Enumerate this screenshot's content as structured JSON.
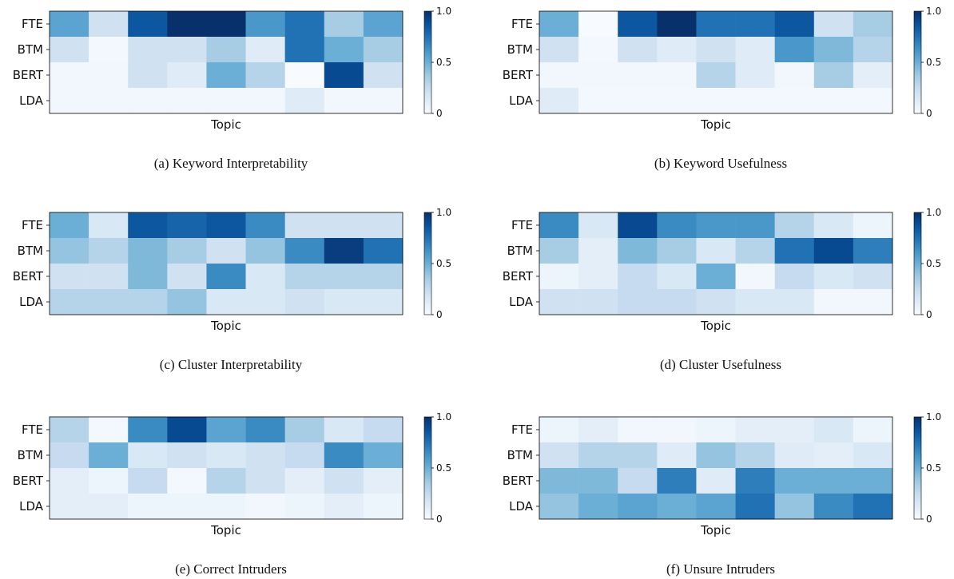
{
  "colormap": "Blues",
  "colorbar_ticks": [
    "0",
    "0.5",
    "1.0"
  ],
  "chart_data": [
    {
      "type": "heatmap",
      "panel": "a",
      "title": "(a)  Keyword Interpretability",
      "xlabel": "Topic",
      "rows": [
        "FTE",
        "BTM",
        "BERT",
        "LDA"
      ],
      "columns": 9,
      "values": [
        [
          0.55,
          0.2,
          0.85,
          1.0,
          1.0,
          0.6,
          0.75,
          0.35,
          0.55
        ],
        [
          0.2,
          0.02,
          0.2,
          0.2,
          0.35,
          0.12,
          0.75,
          0.5,
          0.35
        ],
        [
          0.03,
          0.03,
          0.2,
          0.12,
          0.5,
          0.3,
          0.0,
          0.9,
          0.2
        ],
        [
          0.03,
          0.03,
          0.03,
          0.03,
          0.03,
          0.03,
          0.12,
          0.03,
          0.03
        ]
      ],
      "vmin": 0,
      "vmax": 1.0
    },
    {
      "type": "heatmap",
      "panel": "b",
      "title": "(b)  Keyword Usefulness",
      "xlabel": "Topic",
      "rows": [
        "FTE",
        "BTM",
        "BERT",
        "LDA"
      ],
      "columns": 9,
      "values": [
        [
          0.5,
          0.0,
          0.85,
          1.0,
          0.75,
          0.75,
          0.85,
          0.2,
          0.35
        ],
        [
          0.2,
          0.02,
          0.2,
          0.12,
          0.2,
          0.12,
          0.6,
          0.45,
          0.3
        ],
        [
          0.03,
          0.03,
          0.03,
          0.03,
          0.3,
          0.12,
          0.03,
          0.35,
          0.1
        ],
        [
          0.12,
          0.02,
          0.02,
          0.02,
          0.02,
          0.02,
          0.02,
          0.02,
          0.02
        ]
      ],
      "vmin": 0,
      "vmax": 1.0
    },
    {
      "type": "heatmap",
      "panel": "c",
      "title": "(c)  Cluster Interpretability",
      "xlabel": "Topic",
      "rows": [
        "FTE",
        "BTM",
        "BERT",
        "LDA"
      ],
      "columns": 9,
      "values": [
        [
          0.5,
          0.15,
          0.85,
          0.8,
          0.85,
          0.65,
          0.2,
          0.2,
          0.2
        ],
        [
          0.4,
          0.3,
          0.45,
          0.35,
          0.2,
          0.4,
          0.65,
          0.95,
          0.75
        ],
        [
          0.2,
          0.2,
          0.45,
          0.2,
          0.65,
          0.15,
          0.3,
          0.3,
          0.3
        ],
        [
          0.3,
          0.3,
          0.3,
          0.4,
          0.15,
          0.15,
          0.2,
          0.15,
          0.15
        ]
      ],
      "vmin": 0,
      "vmax": 1.0
    },
    {
      "type": "heatmap",
      "panel": "d",
      "title": "(d)  Cluster Usefulness",
      "xlabel": "Topic",
      "rows": [
        "FTE",
        "BTM",
        "BERT",
        "LDA"
      ],
      "columns": 9,
      "values": [
        [
          0.65,
          0.15,
          0.9,
          0.65,
          0.6,
          0.6,
          0.3,
          0.15,
          0.05
        ],
        [
          0.35,
          0.1,
          0.45,
          0.35,
          0.15,
          0.3,
          0.75,
          0.9,
          0.7
        ],
        [
          0.05,
          0.1,
          0.25,
          0.15,
          0.5,
          0.03,
          0.25,
          0.15,
          0.2
        ],
        [
          0.2,
          0.2,
          0.25,
          0.25,
          0.2,
          0.15,
          0.15,
          0.03,
          0.03
        ]
      ],
      "vmin": 0,
      "vmax": 1.0
    },
    {
      "type": "heatmap",
      "panel": "e",
      "title": "(e)  Correct Intruders",
      "xlabel": "Topic",
      "rows": [
        "FTE",
        "BTM",
        "BERT",
        "LDA"
      ],
      "columns": 9,
      "values": [
        [
          0.3,
          0.02,
          0.65,
          0.9,
          0.55,
          0.65,
          0.35,
          0.15,
          0.25
        ],
        [
          0.25,
          0.5,
          0.15,
          0.2,
          0.15,
          0.2,
          0.25,
          0.65,
          0.5
        ],
        [
          0.1,
          0.05,
          0.25,
          0.02,
          0.3,
          0.2,
          0.1,
          0.2,
          0.1
        ],
        [
          0.1,
          0.1,
          0.05,
          0.05,
          0.05,
          0.03,
          0.05,
          0.1,
          0.05
        ]
      ],
      "vmin": 0,
      "vmax": 1.0
    },
    {
      "type": "heatmap",
      "panel": "f",
      "title": "(f)  Unsure Intruders",
      "xlabel": "Topic",
      "rows": [
        "FTE",
        "BTM",
        "BERT",
        "LDA"
      ],
      "columns": 9,
      "values": [
        [
          0.05,
          0.1,
          0.03,
          0.03,
          0.05,
          0.1,
          0.1,
          0.15,
          0.05
        ],
        [
          0.2,
          0.3,
          0.3,
          0.12,
          0.4,
          0.3,
          0.12,
          0.1,
          0.15
        ],
        [
          0.45,
          0.45,
          0.25,
          0.7,
          0.12,
          0.7,
          0.5,
          0.5,
          0.5
        ],
        [
          0.4,
          0.5,
          0.55,
          0.5,
          0.55,
          0.75,
          0.4,
          0.65,
          0.75
        ]
      ],
      "vmin": 0,
      "vmax": 1.0
    }
  ]
}
